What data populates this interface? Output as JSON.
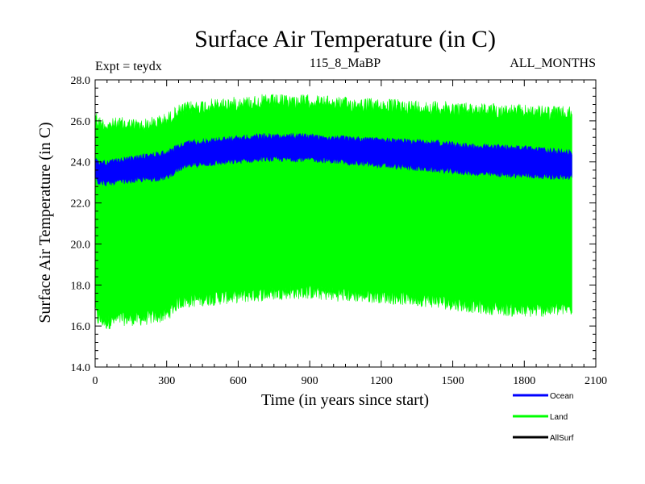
{
  "chart_data": {
    "type": "area",
    "title": "Surface Air Temperature (in C)",
    "subtitle_left": "Expt = teydx",
    "subtitle_center": "115_8_MaBP",
    "subtitle_right": "ALL_MONTHS",
    "xlabel": "Time (in years since start)",
    "ylabel": "Surface Air Temperature (in C)",
    "xlim": [
      0,
      2100
    ],
    "ylim": [
      14.0,
      28.0
    ],
    "x_ticks": [
      0,
      300,
      600,
      900,
      1200,
      1500,
      1800,
      2100
    ],
    "x_tick_labels": [
      "0",
      "300",
      "600",
      "900",
      "1200",
      "1500",
      "1800",
      "2100"
    ],
    "y_ticks": [
      14.0,
      16.0,
      18.0,
      20.0,
      22.0,
      24.0,
      26.0,
      28.0
    ],
    "y_tick_labels": [
      "14.0",
      "16.0",
      "18.0",
      "20.0",
      "22.0",
      "24.0",
      "26.0",
      "28.0"
    ],
    "x": [
      0,
      10,
      50,
      100,
      200,
      300,
      350,
      400,
      500,
      600,
      700,
      800,
      900,
      1000,
      1200,
      1400,
      1600,
      1800,
      2000
    ],
    "series": [
      {
        "name": "Land",
        "color": "#00ff00",
        "upper": [
          26.8,
          26.3,
          26.1,
          26.2,
          26.1,
          26.4,
          26.8,
          27.0,
          27.1,
          27.2,
          27.3,
          27.3,
          27.3,
          27.2,
          27.1,
          27.0,
          26.9,
          26.8,
          26.7
        ],
        "lower": [
          16.5,
          16.0,
          15.8,
          16.0,
          16.0,
          16.2,
          16.8,
          16.9,
          17.0,
          17.1,
          17.2,
          17.3,
          17.3,
          17.2,
          17.1,
          16.9,
          16.6,
          16.4,
          16.5
        ]
      },
      {
        "name": "Ocean",
        "color": "#0000ff",
        "upper": [
          24.3,
          24.1,
          24.1,
          24.2,
          24.4,
          24.6,
          24.9,
          25.1,
          25.2,
          25.3,
          25.4,
          25.4,
          25.4,
          25.3,
          25.2,
          25.1,
          24.9,
          24.8,
          24.6
        ],
        "lower": [
          23.3,
          22.9,
          22.8,
          22.9,
          23.0,
          23.1,
          23.5,
          23.7,
          23.8,
          23.9,
          24.0,
          24.0,
          24.0,
          23.9,
          23.7,
          23.5,
          23.3,
          23.2,
          23.1
        ]
      },
      {
        "name": "AllSurf",
        "color": "#000000",
        "upper": [],
        "lower": []
      }
    ],
    "legend": {
      "placement": "bottom-right",
      "entries": [
        {
          "label": "Ocean",
          "color": "#0000ff"
        },
        {
          "label": "Land",
          "color": "#00ff00"
        },
        {
          "label": "AllSurf",
          "color": "#000000"
        }
      ]
    }
  }
}
